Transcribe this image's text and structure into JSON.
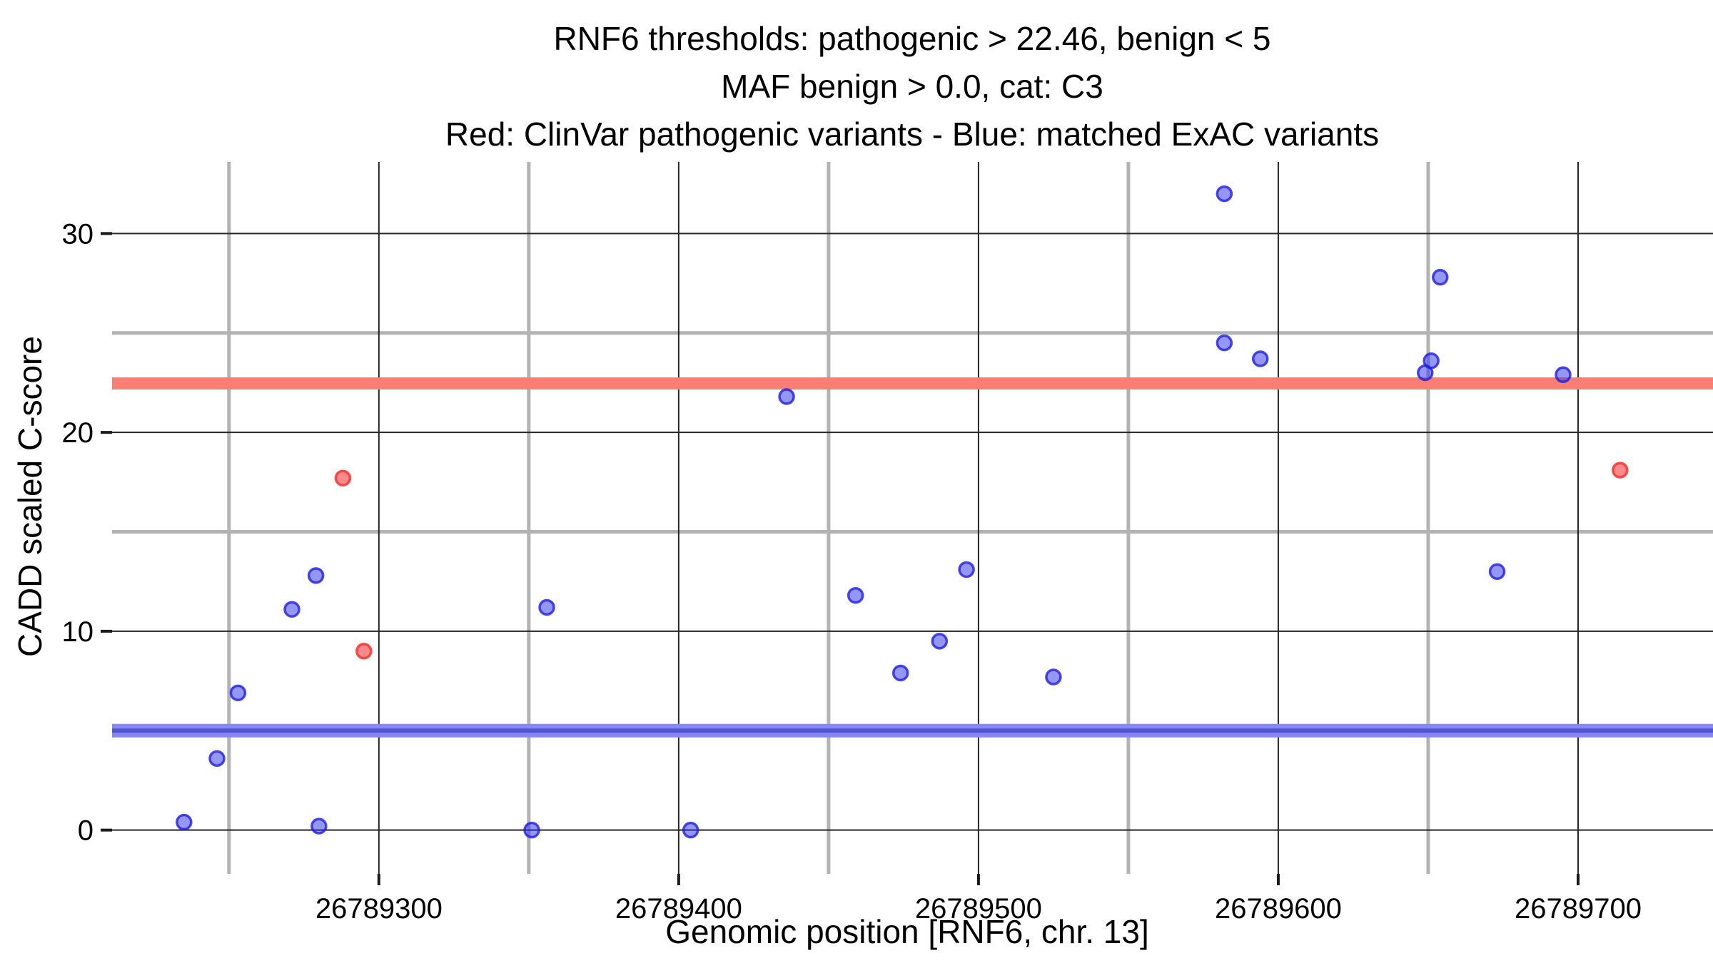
{
  "title": {
    "line1": "RNF6 thresholds: pathogenic > 22.46, benign < 5",
    "line2": "MAF benign > 0.0, cat: C3",
    "line3": "Red: ClinVar pathogenic variants - Blue: matched ExAC variants"
  },
  "colors": {
    "pathogenic_band": "#F97E76",
    "benign_band_light": "#8787FA",
    "benign_band_dark": "#5454CE",
    "blue_point_fill": "rgba(45,45,240,0.50)",
    "blue_point_stroke": "rgba(30,30,225,0.80)",
    "red_point_fill": "rgba(250,60,60,0.60)",
    "red_point_stroke": "rgba(245,50,50,0.85)",
    "major_gridline": "#262626",
    "minor_gridline": "#b3b3b3",
    "tick_mark": "#1a1a1a"
  },
  "chart_data": {
    "type": "scatter",
    "title": "RNF6 thresholds: pathogenic > 22.46, benign < 5 | MAF benign > 0.0, cat: C3 | Red: ClinVar pathogenic variants - Blue: matched ExAC variants",
    "xlabel": "Genomic position [RNF6, chr. 13]",
    "ylabel": "CADD scaled C-score",
    "xlim": [
      26789211,
      26789745
    ],
    "ylim": [
      -2.2,
      33.6
    ],
    "x_ticks": [
      26789300,
      26789400,
      26789500,
      26789600,
      26789700
    ],
    "x_tick_labels": [
      "26789300",
      "26789400",
      "26789500",
      "26789600",
      "26789700"
    ],
    "x_minor_ticks": [
      26789250,
      26789350,
      26789450,
      26789550,
      26789650
    ],
    "y_ticks": [
      0,
      10,
      20,
      30
    ],
    "y_tick_labels": [
      "0",
      "10",
      "20",
      "30"
    ],
    "y_minor_ticks": [
      5,
      15,
      25
    ],
    "grid": "on",
    "legend_position": "none (legend encoded in title line 3)",
    "thresholds": {
      "pathogenic": 22.46,
      "benign": 5.0,
      "maf_benign": 0.0,
      "category": "C3"
    },
    "series": [
      {
        "name": "ClinVar pathogenic variants",
        "color": "red",
        "points": [
          [
            26789288,
            17.7
          ],
          [
            26789295,
            9.0
          ],
          [
            26789714,
            18.1
          ]
        ]
      },
      {
        "name": "matched ExAC variants",
        "color": "blue",
        "points": [
          [
            26789235,
            0.4
          ],
          [
            26789246,
            3.6
          ],
          [
            26789253,
            6.9
          ],
          [
            26789271,
            11.1
          ],
          [
            26789279,
            12.8
          ],
          [
            26789280,
            0.2
          ],
          [
            26789351,
            0.0
          ],
          [
            26789356,
            11.2
          ],
          [
            26789404,
            0.0
          ],
          [
            26789436,
            21.8
          ],
          [
            26789459,
            11.8
          ],
          [
            26789474,
            7.9
          ],
          [
            26789487,
            9.5
          ],
          [
            26789496,
            13.1
          ],
          [
            26789525,
            7.7
          ],
          [
            26789582,
            32.0
          ],
          [
            26789582,
            24.5
          ],
          [
            26789594,
            23.7
          ],
          [
            26789649,
            23.0
          ],
          [
            26789651,
            23.6
          ],
          [
            26789654,
            27.8
          ],
          [
            26789673,
            13.0
          ],
          [
            26789695,
            22.9
          ]
        ]
      }
    ]
  }
}
